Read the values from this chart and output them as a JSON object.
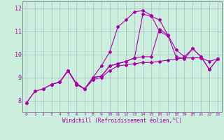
{
  "xlabel": "Windchill (Refroidissement éolien,°C)",
  "bg_color": "#cceedd",
  "line_color": "#aa00aa",
  "xlim": [
    -0.5,
    23.5
  ],
  "ylim": [
    7.5,
    12.3
  ],
  "xticks": [
    0,
    1,
    2,
    3,
    4,
    5,
    6,
    7,
    8,
    9,
    10,
    11,
    12,
    13,
    14,
    15,
    16,
    17,
    18,
    19,
    20,
    21,
    22,
    23
  ],
  "yticks": [
    8,
    9,
    10,
    11,
    12
  ],
  "line1_x": [
    0,
    1,
    2,
    3,
    4,
    5,
    6,
    7,
    8,
    9,
    10,
    11,
    12,
    13,
    14,
    15,
    16,
    17
  ],
  "line1_y": [
    7.9,
    8.4,
    8.5,
    8.7,
    8.8,
    9.3,
    8.7,
    8.5,
    9.0,
    9.5,
    10.1,
    11.2,
    11.5,
    11.85,
    11.9,
    11.7,
    11.0,
    10.8
  ],
  "line2_x": [
    0,
    1,
    2,
    3,
    4,
    5,
    6,
    7,
    8,
    9,
    10,
    11,
    12,
    13,
    14,
    15,
    16,
    17,
    18,
    19,
    20,
    21,
    22,
    23
  ],
  "line2_y": [
    7.9,
    8.4,
    8.5,
    8.7,
    8.8,
    9.3,
    8.75,
    8.5,
    8.9,
    9.0,
    9.3,
    9.5,
    9.55,
    9.6,
    9.65,
    9.65,
    9.7,
    9.75,
    9.8,
    9.85,
    9.85,
    9.85,
    9.7,
    9.8
  ],
  "line3_x": [
    3,
    4,
    5,
    6,
    7,
    8,
    9,
    10,
    11,
    12,
    13,
    14,
    15,
    16,
    17,
    18,
    19,
    20,
    21,
    22,
    23
  ],
  "line3_y": [
    8.7,
    8.8,
    9.3,
    8.7,
    8.5,
    9.0,
    9.05,
    9.5,
    9.6,
    9.7,
    9.85,
    11.75,
    11.65,
    11.5,
    10.85,
    10.2,
    9.9,
    10.25,
    9.9,
    9.35,
    9.8
  ],
  "line4_x": [
    3,
    4,
    5,
    6,
    7,
    8,
    9,
    10,
    11,
    12,
    13,
    14,
    15,
    16,
    17,
    18,
    19,
    20,
    21,
    22,
    23
  ],
  "line4_y": [
    8.7,
    8.8,
    9.3,
    8.7,
    8.5,
    9.0,
    9.05,
    9.5,
    9.6,
    9.7,
    9.85,
    9.9,
    9.9,
    11.1,
    10.85,
    9.9,
    9.8,
    10.25,
    9.9,
    9.35,
    9.8
  ]
}
